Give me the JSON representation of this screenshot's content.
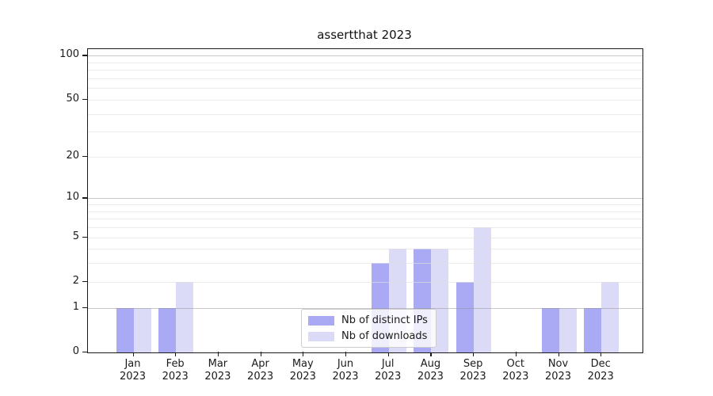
{
  "chart_data": {
    "type": "bar",
    "title": "assertthat 2023",
    "x_categories": [
      "Jan",
      "Feb",
      "Mar",
      "Apr",
      "May",
      "Jun",
      "Jul",
      "Aug",
      "Sep",
      "Oct",
      "Nov",
      "Dec"
    ],
    "x_sublabel": "2023",
    "series": [
      {
        "name": "Nb of distinct IPs",
        "color": "#a9a9f4",
        "values": [
          1,
          1,
          0,
          0,
          0,
          0,
          3,
          4,
          2,
          0,
          1,
          1
        ]
      },
      {
        "name": "Nb of downloads",
        "color": "#dbdbf8",
        "values": [
          1,
          2,
          0,
          0,
          0,
          0,
          4,
          4,
          6,
          0,
          1,
          2
        ]
      }
    ],
    "yscale": "log1p",
    "ylim": [
      0,
      111
    ],
    "ytick_values": [
      0,
      1,
      2,
      5,
      10,
      20,
      50,
      100
    ],
    "ytick_labels": [
      "0",
      "1",
      "2",
      "5",
      "10",
      "20",
      "50",
      "100"
    ],
    "major_gridline_values": [
      1,
      10,
      100
    ],
    "minor_gridline_values": [
      2,
      3,
      4,
      5,
      6,
      7,
      8,
      9,
      20,
      30,
      40,
      50,
      60,
      70,
      80,
      90
    ],
    "grid": true,
    "legend_position": "lower center"
  }
}
